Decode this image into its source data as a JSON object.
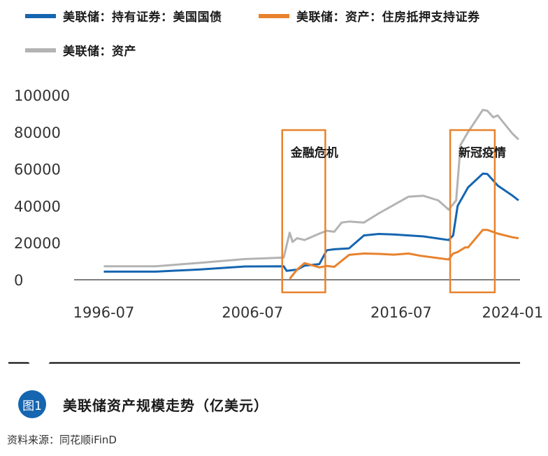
{
  "legend": [
    {
      "label": "美联储：持有证券：美国国债",
      "color": "#1565b0"
    },
    {
      "label": "美联储：资产：住房抵押支持证券",
      "color": "#e8822d"
    },
    {
      "label": "美联储：资产",
      "color": "#b3b3b3"
    }
  ],
  "annotations": [
    {
      "label": "金融危机",
      "color": "#e8822d"
    },
    {
      "label": "新冠疫情",
      "color": "#e8822d"
    }
  ],
  "figure": {
    "badge": "图1",
    "title": "美联储资产规模走势（亿美元）",
    "source": "资料来源：同花顺iFinD"
  },
  "chart_data": {
    "type": "line",
    "title": "美联储资产规模走势（亿美元）",
    "xlabel": "",
    "ylabel": "",
    "x_ticks": [
      "1996-07",
      "2006-07",
      "2016-07",
      "2024-01"
    ],
    "x_tick_values": [
      1996.5,
      2006.5,
      2016.5,
      2024.0
    ],
    "y_ticks": [
      "0",
      "20000",
      "40000",
      "60000",
      "80000",
      "100000"
    ],
    "ylim": [
      0,
      100000
    ],
    "xlim": [
      1994.5,
      2024.5
    ],
    "series": [
      {
        "name": "美联储：资产",
        "color": "#b3b3b3",
        "x": [
          1996.5,
          2000,
          2003,
          2006,
          2008.6,
          2009.0,
          2009.2,
          2009.5,
          2010,
          2011,
          2011.5,
          2012,
          2012.5,
          2013,
          2014,
          2015,
          2017,
          2018,
          2019,
          2019.7,
          2020.0,
          2020.2,
          2020.5,
          2021,
          2022.0,
          2022.3,
          2022.7,
          2023,
          2023.3,
          2024.0,
          2024.4
        ],
        "y": [
          7300,
          7300,
          9200,
          11200,
          12000,
          25500,
          20500,
          22500,
          21500,
          25000,
          26500,
          26000,
          31000,
          31500,
          31000,
          36000,
          45000,
          45500,
          43000,
          38000,
          41000,
          43000,
          73000,
          80000,
          92000,
          91500,
          88000,
          89000,
          86000,
          79000,
          76000
        ]
      },
      {
        "name": "美联储：持有证券：美国国债",
        "color": "#1565b0",
        "x": [
          1996.5,
          2000,
          2003,
          2006,
          2008.6,
          2008.8,
          2009.5,
          2010,
          2011,
          2011.5,
          2012,
          2013,
          2014,
          2015,
          2016,
          2017,
          2018,
          2019.7,
          2020.0,
          2020.3,
          2021,
          2022.0,
          2022.3,
          2023,
          2024.0,
          2024.4
        ],
        "y": [
          4400,
          4400,
          5600,
          7200,
          7300,
          4800,
          5500,
          7600,
          8500,
          16000,
          16500,
          17000,
          24000,
          24800,
          24500,
          24000,
          23500,
          21500,
          24000,
          40000,
          50000,
          57500,
          57300,
          51000,
          45500,
          43000
        ]
      },
      {
        "name": "美联储：资产：住房抵押支持证券",
        "color": "#e8822d",
        "x": [
          2009.0,
          2009.5,
          2010,
          2011,
          2011.5,
          2012,
          2013,
          2014,
          2015,
          2016,
          2017,
          2017.8,
          2019.7,
          2020.0,
          2020.3,
          2020.8,
          2021,
          2022.0,
          2022.3,
          2023,
          2024.0,
          2024.4
        ],
        "y": [
          500,
          5500,
          9000,
          6700,
          7500,
          7000,
          13500,
          14200,
          14000,
          13600,
          14200,
          13000,
          11000,
          14200,
          15000,
          17500,
          17500,
          27000,
          27000,
          25000,
          23000,
          22500
        ]
      }
    ],
    "highlight_ranges": [
      {
        "label": "金融危机",
        "x": [
          2008.5,
          2011.4
        ]
      },
      {
        "label": "新冠疫情",
        "x": [
          2019.8,
          2022.8
        ]
      }
    ]
  }
}
